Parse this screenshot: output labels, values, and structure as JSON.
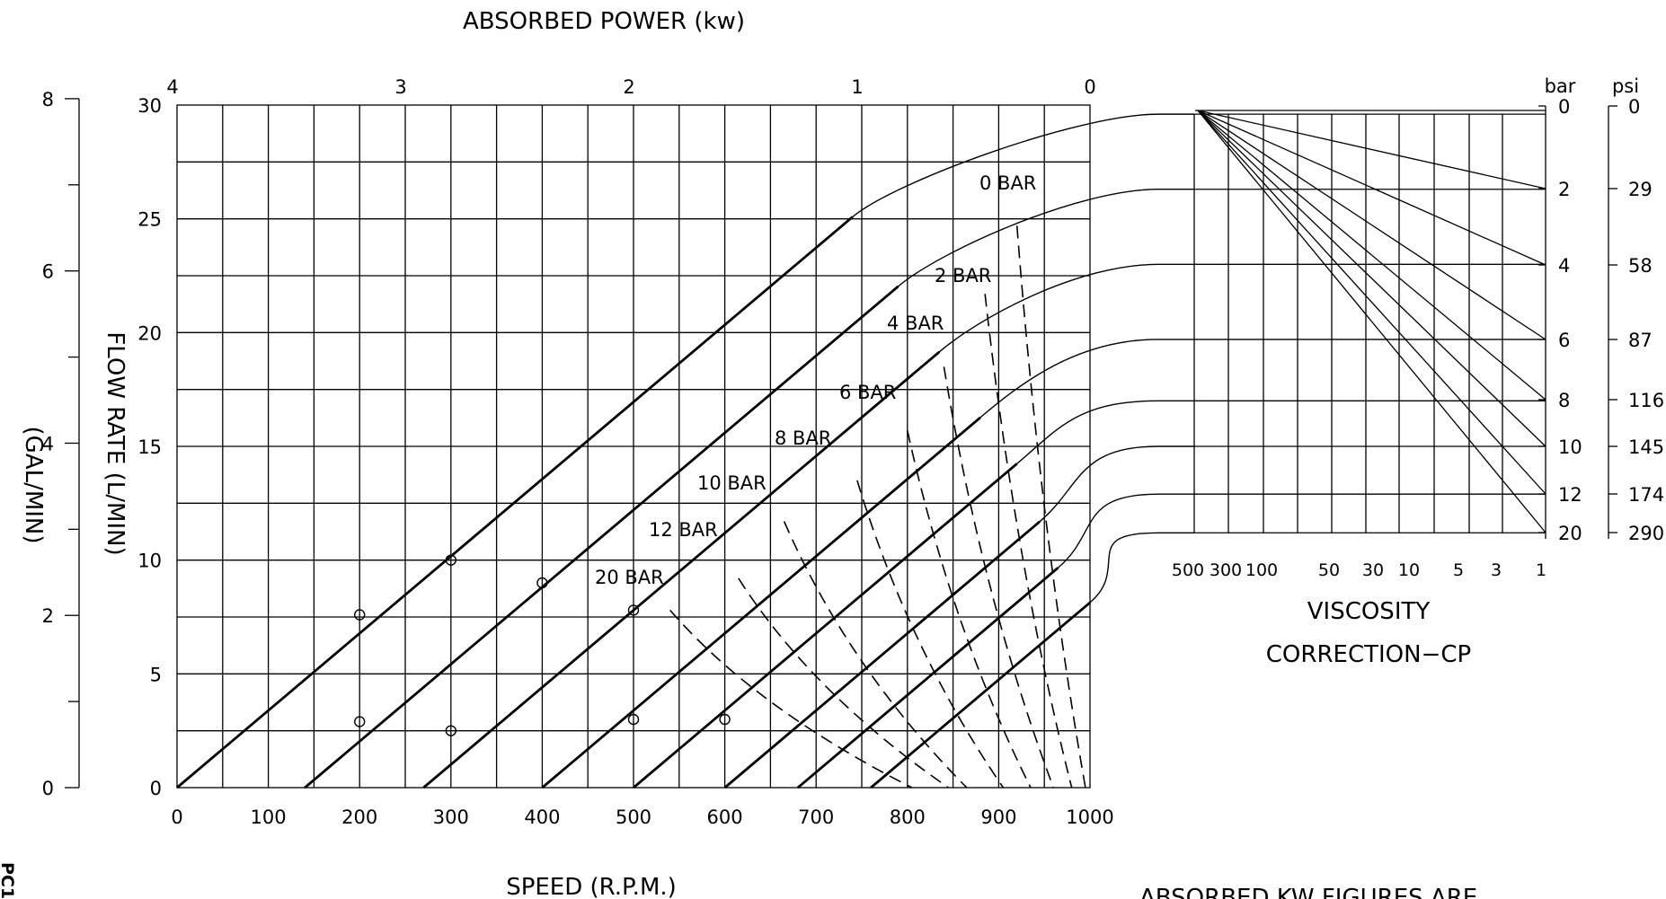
{
  "chart_data": {
    "type": "line",
    "title": "",
    "xlabel": "SPEED  (R.P.M.)",
    "ylabel": "FLOW  RATE  (L/MIN)",
    "ylabel_secondary": "(GAL/MIN)",
    "top_axis_label": "ABSORBED  POWER  (kw)",
    "xlim": [
      0,
      1000
    ],
    "ylim": [
      0,
      30
    ],
    "x_ticks": [
      "0",
      "100",
      "200",
      "300",
      "400",
      "500",
      "600",
      "700",
      "800",
      "900",
      "1000"
    ],
    "y_ticks": [
      "0",
      "5",
      "10",
      "15",
      "20",
      "25",
      "30"
    ],
    "gal_ticks": [
      "0",
      "2",
      "4",
      "6",
      "8"
    ],
    "power_ticks": [
      "4",
      "3",
      "2",
      "1",
      "0"
    ],
    "series": [
      {
        "name": "0 BAR",
        "label": "0  BAR",
        "x0": 0,
        "knee": 740
      },
      {
        "name": "2 BAR",
        "label": "2  BAR",
        "x0": 140,
        "knee": 790
      },
      {
        "name": "4 BAR",
        "label": "4  BAR",
        "x0": 270,
        "knee": 835
      },
      {
        "name": "6 BAR",
        "label": "6  BAR",
        "x0": 400,
        "knee": 880
      },
      {
        "name": "8 BAR",
        "label": "8  BAR",
        "x0": 500,
        "knee": 920
      },
      {
        "name": "10 BAR",
        "label": "10  BAR",
        "x0": 600,
        "knee": 945
      },
      {
        "name": "12 BAR",
        "label": "12  BAR",
        "x0": 680,
        "knee": 965
      },
      {
        "name": "20 BAR",
        "label": "20  BAR",
        "x0": 760,
        "knee": 1000
      }
    ],
    "flow_slope_lpm_per_rpm": 0.0339,
    "plateaus_lpm": [
      29.6,
      26.3,
      23,
      19.7,
      17,
      15,
      12.9,
      11.2
    ],
    "data_points": [
      {
        "x": 200,
        "y": 7.6
      },
      {
        "x": 200,
        "y": 2.9
      },
      {
        "x": 300,
        "y": 10
      },
      {
        "x": 300,
        "y": 2.5
      },
      {
        "x": 400,
        "y": 9
      },
      {
        "x": 500,
        "y": 7.8
      },
      {
        "x": 500,
        "y": 3
      },
      {
        "x": 600,
        "y": 3
      }
    ],
    "power_curves": [
      {
        "start": [
          540,
          7.8
        ],
        "end": [
          805,
          0
        ]
      },
      {
        "start": [
          615,
          9.2
        ],
        "end": [
          845,
          0
        ]
      },
      {
        "start": [
          665,
          11.7
        ],
        "end": [
          865,
          0
        ]
      },
      {
        "start": [
          745,
          13.5
        ],
        "end": [
          905,
          0
        ]
      },
      {
        "start": [
          800,
          15.7
        ],
        "end": [
          935,
          0
        ]
      },
      {
        "start": [
          840,
          18.5
        ],
        "end": [
          960,
          0
        ]
      },
      {
        "start": [
          885,
          21.7
        ],
        "end": [
          980,
          0
        ]
      },
      {
        "start": [
          920,
          24.7
        ],
        "end": [
          995,
          0
        ]
      }
    ],
    "viscosity_axis_label": [
      "VISCOSITY",
      "CORRECTION−CP"
    ],
    "viscosity_ticks": [
      "500",
      "300",
      "100",
      "50",
      "30",
      "10",
      "5",
      "3",
      "1"
    ],
    "pressure_bar_header": "bar",
    "pressure_psi_header": "psi",
    "pressure_bar_ticks": [
      "0",
      "2",
      "4",
      "6",
      "8",
      "10",
      "12",
      "20"
    ],
    "pressure_psi_ticks": [
      "0",
      "29",
      "58",
      "87",
      "116",
      "145",
      "174",
      "290"
    ],
    "grid": true
  },
  "side_code": "PC1",
  "footnote": "ABSORBED  KW  FIGURES  ARE"
}
